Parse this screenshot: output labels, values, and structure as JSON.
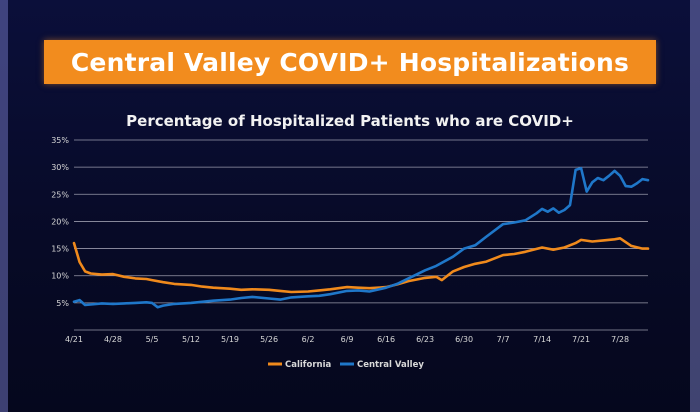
{
  "slide": {
    "banner_title": "Central Valley COVID+ Hospitalizations"
  },
  "colors": {
    "banner": "#f28c1e",
    "california": "#f08a1c",
    "central_valley": "#1f77c9",
    "grid": "#c9c9d6",
    "background": "#0a0d2e"
  },
  "chart_data": {
    "type": "line",
    "title": "Percentage of Hospitalized Patients who are COVID+",
    "xlabel": "",
    "ylabel": "",
    "ylim": [
      0,
      35
    ],
    "yticks": [
      5,
      10,
      15,
      20,
      25,
      30,
      35
    ],
    "ytick_labels": [
      "5%",
      "10%",
      "15%",
      "20%",
      "25%",
      "30%",
      "35%"
    ],
    "grid": true,
    "legend_position": "bottom",
    "x_tick_labels": [
      "4/21",
      "4/28",
      "5/5",
      "5/12",
      "5/19",
      "5/26",
      "6/2",
      "6/9",
      "6/16",
      "6/23",
      "6/30",
      "7/7",
      "7/14",
      "7/21",
      "7/28"
    ],
    "x_start": "4/21",
    "x_end": "8/2",
    "series": [
      {
        "name": "California",
        "color": "#f08a1c",
        "x": [
          "4/21",
          "4/22",
          "4/23",
          "4/24",
          "4/26",
          "4/28",
          "4/30",
          "5/2",
          "5/4",
          "5/5",
          "5/7",
          "5/9",
          "5/12",
          "5/14",
          "5/16",
          "5/19",
          "5/21",
          "5/23",
          "5/26",
          "5/28",
          "5/30",
          "6/2",
          "6/4",
          "6/6",
          "6/9",
          "6/11",
          "6/13",
          "6/16",
          "6/18",
          "6/20",
          "6/23",
          "6/25",
          "6/26",
          "6/28",
          "6/30",
          "7/2",
          "7/4",
          "7/7",
          "7/9",
          "7/11",
          "7/14",
          "7/16",
          "7/18",
          "7/20",
          "7/21",
          "7/23",
          "7/25",
          "7/27",
          "7/28",
          "7/30",
          "8/1",
          "8/2"
        ],
        "values": [
          16,
          12.5,
          10.8,
          10.4,
          10.2,
          10.3,
          9.8,
          9.5,
          9.4,
          9.2,
          8.8,
          8.5,
          8.3,
          8.0,
          7.8,
          7.6,
          7.4,
          7.5,
          7.4,
          7.2,
          7.0,
          7.1,
          7.3,
          7.5,
          7.9,
          7.8,
          7.7,
          7.9,
          8.4,
          9.0,
          9.6,
          9.8,
          9.2,
          10.8,
          11.6,
          12.2,
          12.6,
          13.8,
          14.0,
          14.4,
          15.2,
          14.8,
          15.2,
          16.0,
          16.6,
          16.3,
          16.5,
          16.7,
          16.9,
          15.5,
          15.0,
          15.0
        ]
      },
      {
        "name": "Central Valley",
        "color": "#1f77c9",
        "x": [
          "4/21",
          "4/22",
          "4/23",
          "4/24",
          "4/26",
          "4/28",
          "4/30",
          "5/2",
          "5/4",
          "5/5",
          "5/6",
          "5/7",
          "5/9",
          "5/12",
          "5/14",
          "5/16",
          "5/19",
          "5/21",
          "5/23",
          "5/26",
          "5/28",
          "5/30",
          "6/2",
          "6/4",
          "6/6",
          "6/9",
          "6/11",
          "6/13",
          "6/16",
          "6/18",
          "6/20",
          "6/23",
          "6/25",
          "6/28",
          "6/30",
          "7/2",
          "7/4",
          "7/7",
          "7/9",
          "7/11",
          "7/13",
          "7/14",
          "7/15",
          "7/16",
          "7/17",
          "7/18",
          "7/19",
          "7/20",
          "7/21",
          "7/22",
          "7/23",
          "7/24",
          "7/25",
          "7/26",
          "7/27",
          "7/28",
          "7/29",
          "7/30",
          "7/31",
          "8/1",
          "8/2"
        ],
        "values": [
          5.2,
          5.5,
          4.6,
          4.7,
          4.9,
          4.8,
          4.9,
          5.0,
          5.1,
          5.0,
          4.2,
          4.5,
          4.8,
          5.0,
          5.2,
          5.4,
          5.6,
          5.9,
          6.1,
          5.8,
          5.6,
          6.0,
          6.2,
          6.3,
          6.6,
          7.2,
          7.3,
          7.1,
          7.8,
          8.5,
          9.5,
          11.0,
          11.8,
          13.5,
          15.0,
          15.6,
          17.2,
          19.5,
          19.8,
          20.2,
          21.5,
          22.3,
          21.8,
          22.4,
          21.6,
          22.1,
          23.0,
          29.5,
          29.8,
          25.5,
          27.2,
          28.0,
          27.6,
          28.4,
          29.3,
          28.4,
          26.5,
          26.4,
          27.0,
          27.8,
          27.6
        ]
      }
    ]
  }
}
